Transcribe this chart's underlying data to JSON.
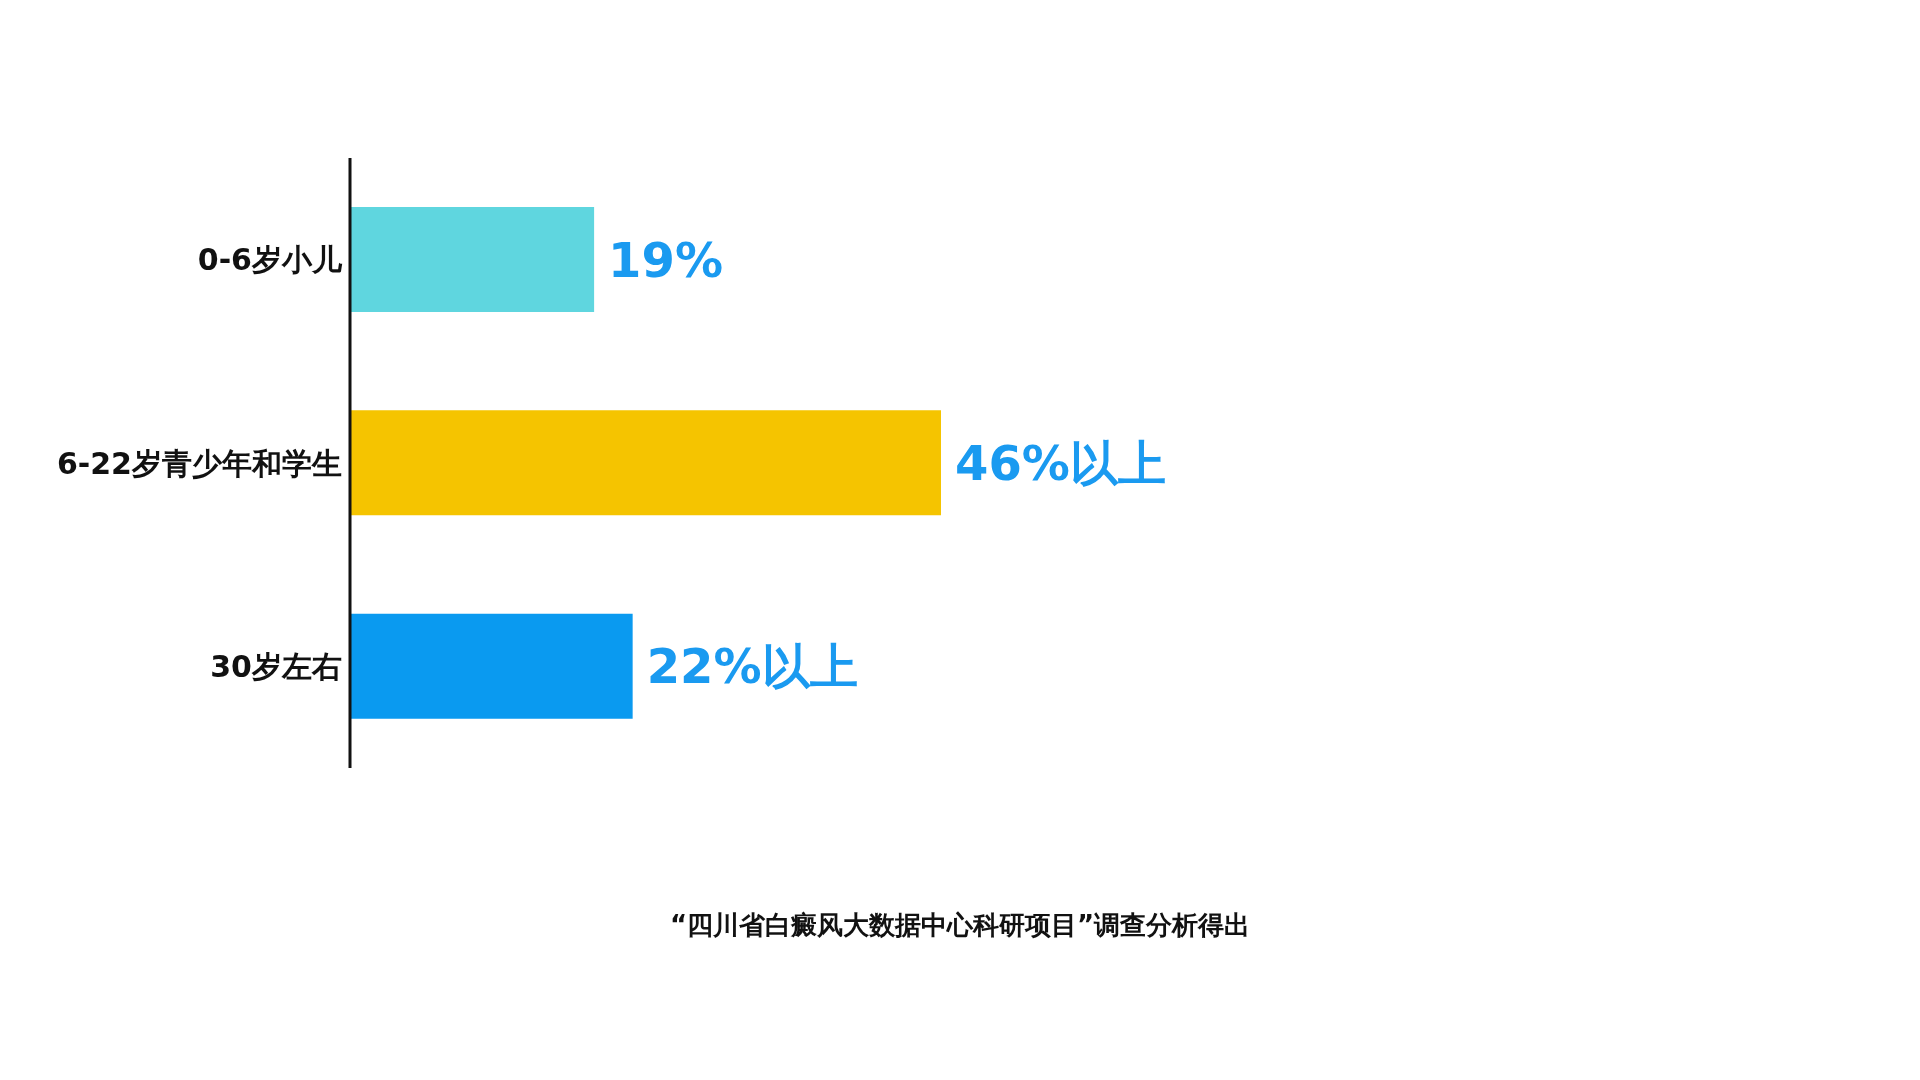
{
  "chart_data": {
    "type": "bar",
    "orientation": "horizontal",
    "categories": [
      "0-6岁小儿",
      "6-22岁青少年和学生",
      "30岁左右"
    ],
    "values": [
      19,
      46,
      22
    ],
    "colors": [
      "#5fd6df",
      "#f5c400",
      "#0a9af0"
    ],
    "value_labels": [
      "19%",
      "46%以上",
      "22%以上"
    ],
    "tick_labels": "y",
    "grid": false,
    "annotations": [
      "“四川省白癜风大数据中心科研项目”调查分析得出"
    ]
  }
}
